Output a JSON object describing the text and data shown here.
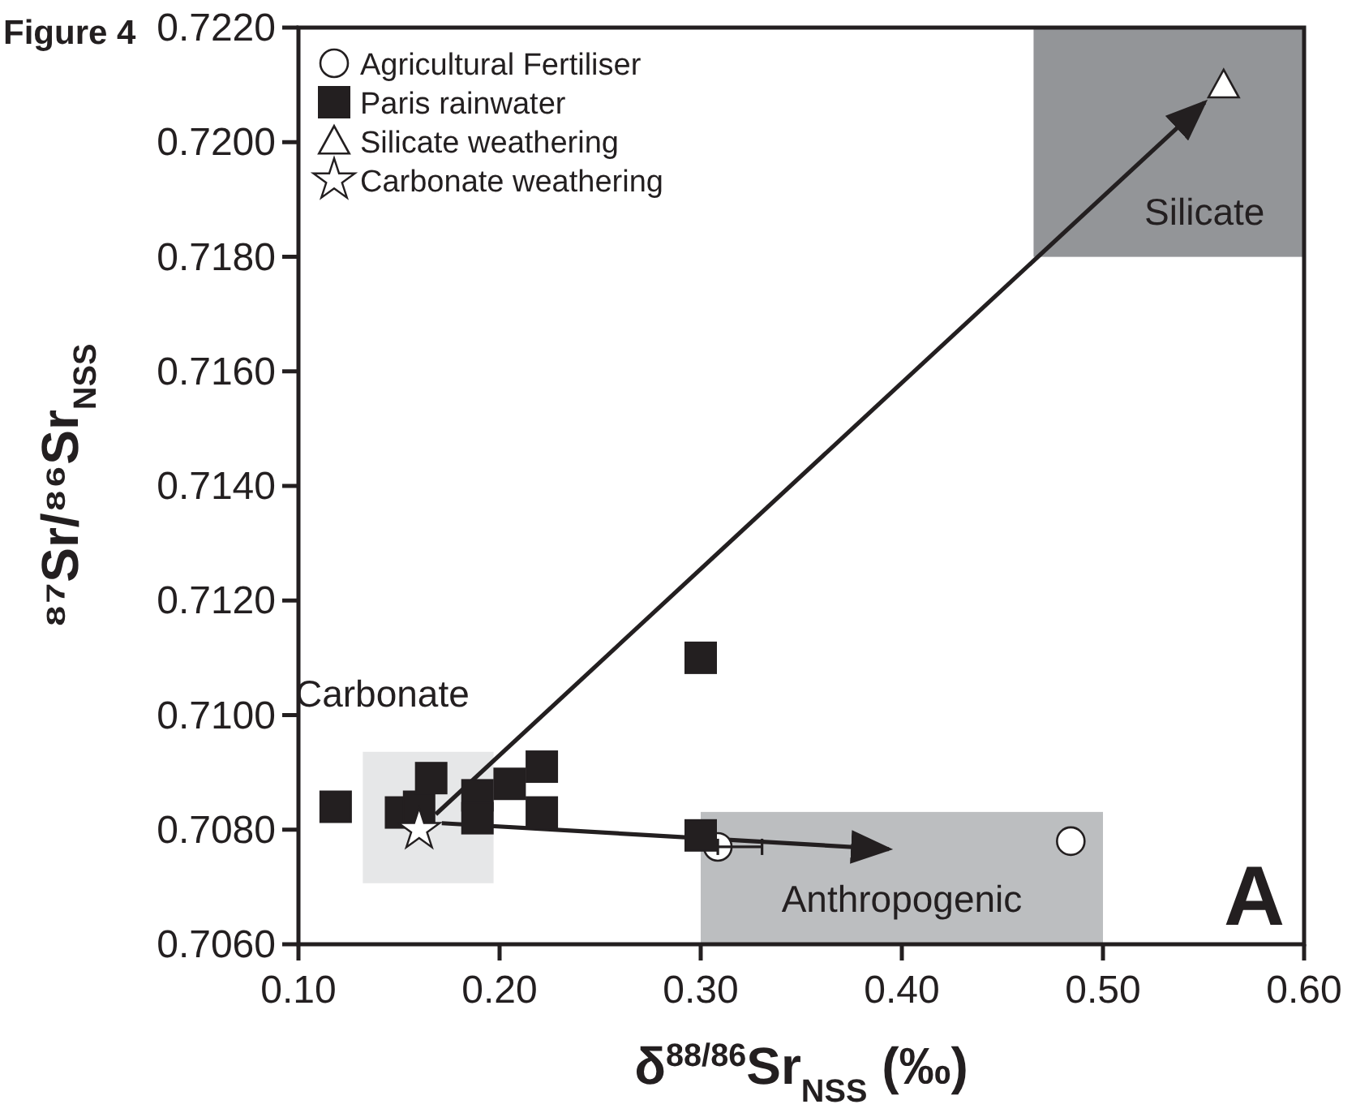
{
  "chart_data": {
    "type": "scatter",
    "xlabel": "δ$^{88/86}$Sr$_{NSS}$ (‰)",
    "ylabel": "⁸⁷Sr/⁸⁶Sr$_{NSS}$",
    "xlim": [
      0.1,
      0.6
    ],
    "ylim": [
      0.706,
      0.722
    ],
    "xticks": [
      {
        "value": 0.1,
        "label": "0.10"
      },
      {
        "value": 0.2,
        "label": "0.20"
      },
      {
        "value": 0.3,
        "label": "0.30"
      },
      {
        "value": 0.4,
        "label": "0.40"
      },
      {
        "value": 0.5,
        "label": "0.50"
      },
      {
        "value": 0.6,
        "label": "0.60"
      }
    ],
    "yticks": [
      {
        "value": 0.706,
        "label": "0.7060"
      },
      {
        "value": 0.708,
        "label": "0.7080"
      },
      {
        "value": 0.71,
        "label": "0.7100"
      },
      {
        "value": 0.712,
        "label": "0.7120"
      },
      {
        "value": 0.714,
        "label": "0.7140"
      },
      {
        "value": 0.716,
        "label": "0.7160"
      },
      {
        "value": 0.718,
        "label": "0.7180"
      },
      {
        "value": 0.72,
        "label": "0.7200"
      },
      {
        "value": 0.722,
        "label": "0.7220"
      }
    ],
    "grid": false,
    "legend": "top left",
    "bands": [
      {
        "axis": "x",
        "from": 0.132,
        "to": 0.197,
        "label": "Carbonate",
        "color": "#e6e7e8"
      },
      {
        "axis": "x",
        "from": 0.3,
        "to": 0.5,
        "label": "Anthropogenic",
        "color": "#bcbec0"
      },
      {
        "axis": "x",
        "from": 0.4655,
        "to": 0.6,
        "label": "Silicate",
        "color": "#939598"
      }
    ],
    "series": [
      {
        "name": "Agricultural Fertiliser",
        "marker": "circle",
        "color": "#ffffff",
        "x": [
          0.3085,
          0.484
        ],
        "values": [
          0.7077,
          0.7078
        ],
        "xerrors": [
          [
            0.3085,
            0.3305
          ],
          null
        ]
      },
      {
        "name": "Paris rainwater",
        "marker": "square",
        "color": "#231f20",
        "x": [
          0.1185,
          0.151,
          0.16,
          0.166,
          0.189,
          0.189,
          0.205,
          0.221,
          0.221,
          0.3,
          0.3
        ],
        "values": [
          0.7084,
          0.7083,
          0.7084,
          0.7089,
          0.7086,
          0.7082,
          0.7088,
          0.7091,
          0.7083,
          0.711,
          0.7079
        ]
      },
      {
        "name": "Silicate weathering",
        "marker": "triangle",
        "color": "#ffffff",
        "x": [
          0.56
        ],
        "values": [
          0.721
        ]
      },
      {
        "name": "Carbonate weathering",
        "marker": "star",
        "color": "#ffffff",
        "x": [
          0.16
        ],
        "values": [
          0.708
        ]
      }
    ],
    "annotations": [
      "Figure 4",
      "A"
    ]
  }
}
